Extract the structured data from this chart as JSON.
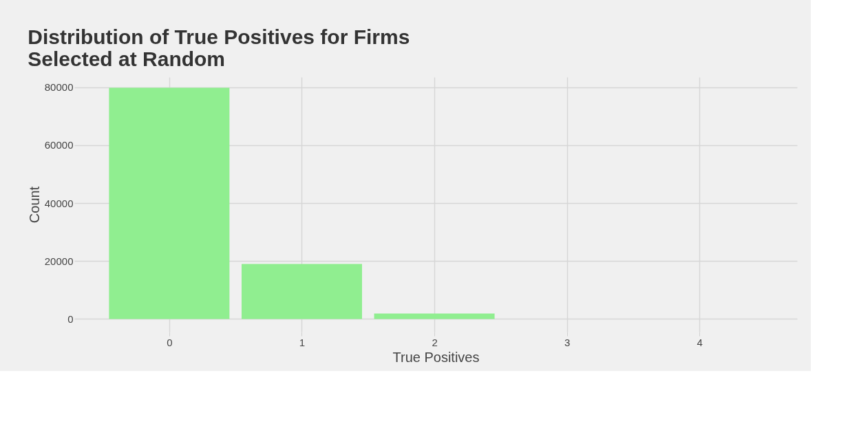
{
  "chart_data": {
    "type": "bar",
    "title": [
      "Distribution of True Positives for Firms",
      " Selected at Random"
    ],
    "xlabel": "True Positives",
    "ylabel": "Count",
    "x": [
      0,
      1,
      2
    ],
    "values": [
      79800,
      19000,
      1900
    ],
    "color": "#90ee90",
    "xlim": [
      -0.69,
      4.71
    ],
    "xticks": [
      0,
      1,
      2,
      3,
      4
    ],
    "ylim": [
      -4400,
      83500
    ],
    "yticks": [
      0,
      20000,
      40000,
      60000,
      80000
    ],
    "grid": true
  }
}
